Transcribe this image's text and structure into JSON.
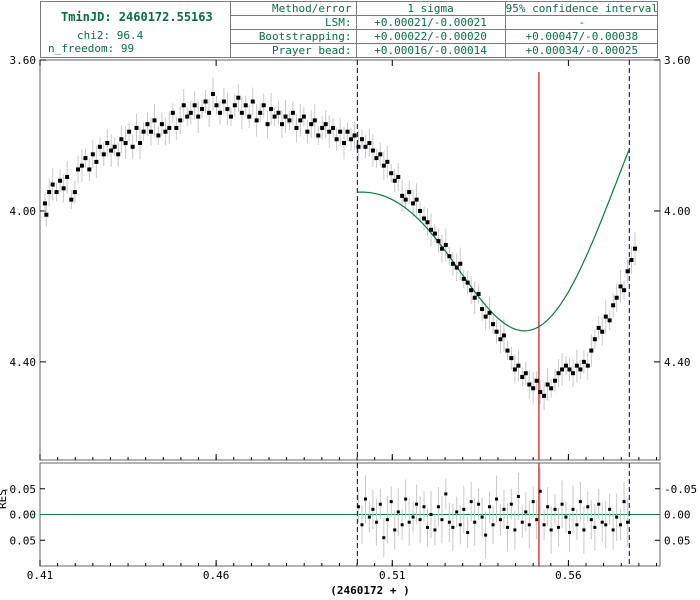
{
  "info": {
    "tmin": "TminJD: 2460172.55163",
    "chi2": "chi2: 96.4",
    "n_freedom": "n_freedom: 99"
  },
  "error_table": {
    "headers": [
      "Method/error",
      "1 sigma",
      "95% confidence interval"
    ],
    "rows": [
      {
        "method": "LSM:",
        "sigma": "+0.00021/-0.00021",
        "ci": "-"
      },
      {
        "method": "Bootstrapping:",
        "sigma": "+0.00022/-0.00020",
        "ci": "+0.00047/-0.00038"
      },
      {
        "method": "Prayer bead:",
        "sigma": "+0.00016/-0.00014",
        "ci": "+0.00034/-0.00025"
      }
    ]
  },
  "colors": {
    "points": "#000000",
    "error_bars": "#c8c8c8",
    "fit_line": "#0b7a3c",
    "minimum_line": "#c81414",
    "window_lines": "#1a2a9a",
    "panel_text": "#0b6b44"
  },
  "chart_data": {
    "type": "scatter",
    "title": "",
    "xlabel": "(2460172 + )",
    "ylabel": "",
    "x_ticks": [
      "0.41",
      "0.46",
      "0.51",
      "0.56"
    ],
    "xlim": [
      0.41,
      0.586
    ],
    "main_panel": {
      "y_inverted": true,
      "ylim": [
        3.6,
        4.66
      ],
      "y_ticks": [
        "3.60",
        "4.00",
        "4.40"
      ],
      "minimum_time": 0.55163,
      "window": [
        0.5001,
        0.5773
      ],
      "fit_model": {
        "type": "gaussian_dip_on_linear_trend",
        "center": 0.55163,
        "depth": 0.69,
        "width": 0.0225,
        "baseline_at": 0.5001,
        "baseline_value": 3.9,
        "baseline_slope": -5.5
      },
      "points": [
        [
          0.4114,
          3.98
        ],
        [
          0.4118,
          4.01
        ],
        [
          0.4126,
          3.95
        ],
        [
          0.4136,
          3.93
        ],
        [
          0.4147,
          3.95
        ],
        [
          0.4157,
          3.92
        ],
        [
          0.4167,
          3.94
        ],
        [
          0.4177,
          3.91
        ],
        [
          0.4189,
          3.97
        ],
        [
          0.4199,
          3.95
        ],
        [
          0.4208,
          3.89
        ],
        [
          0.4219,
          3.88
        ],
        [
          0.4229,
          3.86
        ],
        [
          0.424,
          3.89
        ],
        [
          0.425,
          3.85
        ],
        [
          0.426,
          3.87
        ],
        [
          0.427,
          3.83
        ],
        [
          0.4281,
          3.85
        ],
        [
          0.4291,
          3.82
        ],
        [
          0.4302,
          3.84
        ],
        [
          0.4312,
          3.83
        ],
        [
          0.4322,
          3.85
        ],
        [
          0.4331,
          3.81
        ],
        [
          0.4343,
          3.82
        ],
        [
          0.4353,
          3.79
        ],
        [
          0.4363,
          3.83
        ],
        [
          0.4374,
          3.78
        ],
        [
          0.4384,
          3.82
        ],
        [
          0.4394,
          3.79
        ],
        [
          0.4405,
          3.77
        ],
        [
          0.4415,
          3.79
        ],
        [
          0.4425,
          3.76
        ],
        [
          0.4436,
          3.8
        ],
        [
          0.4446,
          3.77
        ],
        [
          0.4456,
          3.79
        ],
        [
          0.4467,
          3.78
        ],
        [
          0.4477,
          3.74
        ],
        [
          0.4487,
          3.78
        ],
        [
          0.4498,
          3.76
        ],
        [
          0.4508,
          3.72
        ],
        [
          0.4518,
          3.75
        ],
        [
          0.4528,
          3.74
        ],
        [
          0.4539,
          3.72
        ],
        [
          0.4549,
          3.75
        ],
        [
          0.456,
          3.73
        ],
        [
          0.457,
          3.71
        ],
        [
          0.458,
          3.74
        ],
        [
          0.4591,
          3.69
        ],
        [
          0.4601,
          3.72
        ],
        [
          0.4611,
          3.74
        ],
        [
          0.4622,
          3.71
        ],
        [
          0.4632,
          3.73
        ],
        [
          0.4642,
          3.75
        ],
        [
          0.4653,
          3.72
        ],
        [
          0.4663,
          3.7
        ],
        [
          0.4673,
          3.74
        ],
        [
          0.4684,
          3.72
        ],
        [
          0.4694,
          3.75
        ],
        [
          0.4704,
          3.71
        ],
        [
          0.4715,
          3.76
        ],
        [
          0.4725,
          3.74
        ],
        [
          0.4735,
          3.72
        ],
        [
          0.4746,
          3.77
        ],
        [
          0.4756,
          3.73
        ],
        [
          0.4766,
          3.75
        ],
        [
          0.4777,
          3.74
        ],
        [
          0.4787,
          3.77
        ],
        [
          0.4797,
          3.75
        ],
        [
          0.4808,
          3.76
        ],
        [
          0.4818,
          3.74
        ],
        [
          0.4828,
          3.78
        ],
        [
          0.4839,
          3.76
        ],
        [
          0.4849,
          3.75
        ],
        [
          0.4859,
          3.79
        ],
        [
          0.487,
          3.77
        ],
        [
          0.488,
          3.76
        ],
        [
          0.489,
          3.8
        ],
        [
          0.4901,
          3.78
        ],
        [
          0.4911,
          3.77
        ],
        [
          0.4921,
          3.79
        ],
        [
          0.4932,
          3.78
        ],
        [
          0.4942,
          3.81
        ],
        [
          0.4952,
          3.79
        ],
        [
          0.4963,
          3.82
        ],
        [
          0.4973,
          3.79
        ],
        [
          0.4983,
          3.81
        ],
        [
          0.4993,
          3.8
        ],
        [
          0.5004,
          3.83
        ],
        [
          0.5014,
          3.81
        ],
        [
          0.5024,
          3.83
        ],
        [
          0.5035,
          3.82
        ],
        [
          0.5045,
          3.84
        ],
        [
          0.5055,
          3.86
        ],
        [
          0.5066,
          3.85
        ],
        [
          0.5076,
          3.88
        ],
        [
          0.5086,
          3.87
        ],
        [
          0.5097,
          3.9
        ],
        [
          0.5107,
          3.92
        ],
        [
          0.5117,
          3.91
        ],
        [
          0.5128,
          3.96
        ],
        [
          0.5138,
          3.97
        ],
        [
          0.5148,
          3.95
        ],
        [
          0.5159,
          3.98
        ],
        [
          0.5169,
          3.97
        ],
        [
          0.5179,
          4.0
        ],
        [
          0.519,
          4.02
        ],
        [
          0.52,
          4.03
        ],
        [
          0.521,
          4.05
        ],
        [
          0.5221,
          4.06
        ],
        [
          0.5231,
          4.08
        ],
        [
          0.5241,
          4.1
        ],
        [
          0.5252,
          4.09
        ],
        [
          0.5262,
          4.12
        ],
        [
          0.5272,
          4.14
        ],
        [
          0.5283,
          4.15
        ],
        [
          0.5293,
          4.14
        ],
        [
          0.5303,
          4.18
        ],
        [
          0.5314,
          4.19
        ],
        [
          0.5324,
          4.21
        ],
        [
          0.5334,
          4.23
        ],
        [
          0.5345,
          4.22
        ],
        [
          0.5355,
          4.26
        ],
        [
          0.5365,
          4.28
        ],
        [
          0.5376,
          4.27
        ],
        [
          0.5386,
          4.3
        ],
        [
          0.5396,
          4.32
        ],
        [
          0.5407,
          4.34
        ],
        [
          0.5417,
          4.33
        ],
        [
          0.5427,
          4.37
        ],
        [
          0.5438,
          4.39
        ],
        [
          0.5448,
          4.42
        ],
        [
          0.5458,
          4.41
        ],
        [
          0.5469,
          4.44
        ],
        [
          0.5479,
          4.43
        ],
        [
          0.5489,
          4.46
        ],
        [
          0.55,
          4.47
        ],
        [
          0.551,
          4.45
        ],
        [
          0.552,
          4.48
        ],
        [
          0.5531,
          4.49
        ],
        [
          0.5541,
          4.46
        ],
        [
          0.5551,
          4.47
        ],
        [
          0.5562,
          4.45
        ],
        [
          0.5572,
          4.43
        ],
        [
          0.5582,
          4.42
        ],
        [
          0.5593,
          4.41
        ],
        [
          0.5603,
          4.42
        ],
        [
          0.5613,
          4.43
        ],
        [
          0.5624,
          4.41
        ],
        [
          0.5634,
          4.42
        ],
        [
          0.5644,
          4.4
        ],
        [
          0.5655,
          4.41
        ],
        [
          0.5665,
          4.37
        ],
        [
          0.5675,
          4.34
        ],
        [
          0.5686,
          4.31
        ],
        [
          0.5696,
          4.32
        ],
        [
          0.5706,
          4.28
        ],
        [
          0.5717,
          4.29
        ],
        [
          0.5727,
          4.25
        ],
        [
          0.5737,
          4.23
        ],
        [
          0.5748,
          4.2
        ],
        [
          0.5758,
          4.21
        ],
        [
          0.5768,
          4.16
        ],
        [
          0.5779,
          4.13
        ],
        [
          0.5789,
          4.1
        ]
      ]
    },
    "residual_panel": {
      "ylabel": "RES",
      "y_inverted": true,
      "ylim": [
        -0.1,
        0.1
      ],
      "y_ticks": [
        "-0.05",
        "0.00",
        "0.05"
      ],
      "points": [
        [
          0.5004,
          -0.015
        ],
        [
          0.5014,
          0.02
        ],
        [
          0.5024,
          -0.03
        ],
        [
          0.5035,
          0.005
        ],
        [
          0.5045,
          -0.01
        ],
        [
          0.5055,
          0.015
        ],
        [
          0.5066,
          -0.02
        ],
        [
          0.5076,
          0.045
        ],
        [
          0.5086,
          0.01
        ],
        [
          0.5097,
          -0.025
        ],
        [
          0.5107,
          0.03
        ],
        [
          0.5117,
          -0.005
        ],
        [
          0.5128,
          0.02
        ],
        [
          0.5138,
          -0.03
        ],
        [
          0.5148,
          0.015
        ],
        [
          0.5159,
          0.005
        ],
        [
          0.5169,
          -0.02
        ],
        [
          0.5179,
          0.01
        ],
        [
          0.519,
          -0.015
        ],
        [
          0.52,
          0.025
        ],
        [
          0.521,
          0.0
        ],
        [
          0.5221,
          0.03
        ],
        [
          0.5231,
          -0.015
        ],
        [
          0.5241,
          0.01
        ],
        [
          0.5252,
          -0.04
        ],
        [
          0.5262,
          0.015
        ],
        [
          0.5272,
          0.025
        ],
        [
          0.5283,
          -0.005
        ],
        [
          0.5293,
          0.02
        ],
        [
          0.5303,
          -0.01
        ],
        [
          0.5314,
          0.035
        ],
        [
          0.5324,
          -0.025
        ],
        [
          0.5334,
          0.015
        ],
        [
          0.5345,
          -0.02
        ],
        [
          0.5355,
          0.005
        ],
        [
          0.5365,
          0.04
        ],
        [
          0.5376,
          -0.015
        ],
        [
          0.5386,
          0.02
        ],
        [
          0.5396,
          -0.03
        ],
        [
          0.5407,
          0.01
        ],
        [
          0.5417,
          -0.01
        ],
        [
          0.5427,
          0.025
        ],
        [
          0.5438,
          -0.02
        ],
        [
          0.5448,
          0.03
        ],
        [
          0.5458,
          -0.035
        ],
        [
          0.5469,
          0.015
        ],
        [
          0.5479,
          -0.005
        ],
        [
          0.5489,
          0.02
        ],
        [
          0.55,
          -0.025
        ],
        [
          0.551,
          0.01
        ],
        [
          0.552,
          -0.045
        ],
        [
          0.5531,
          0.02
        ],
        [
          0.5541,
          -0.015
        ],
        [
          0.5551,
          0.03
        ],
        [
          0.5562,
          -0.01
        ],
        [
          0.5572,
          0.025
        ],
        [
          0.5582,
          -0.02
        ],
        [
          0.5593,
          0.005
        ],
        [
          0.5603,
          0.035
        ],
        [
          0.5613,
          -0.01
        ],
        [
          0.5624,
          0.02
        ],
        [
          0.5634,
          -0.025
        ],
        [
          0.5644,
          0.03
        ],
        [
          0.5655,
          -0.015
        ],
        [
          0.5665,
          0.01
        ],
        [
          0.5675,
          0.025
        ],
        [
          0.5686,
          -0.02
        ],
        [
          0.5696,
          0.015
        ],
        [
          0.5706,
          0.02
        ],
        [
          0.5717,
          -0.01
        ],
        [
          0.5727,
          0.03
        ],
        [
          0.5737,
          0.005
        ],
        [
          0.5748,
          0.02
        ],
        [
          0.5758,
          -0.025
        ],
        [
          0.5768,
          0.015
        ]
      ]
    }
  }
}
